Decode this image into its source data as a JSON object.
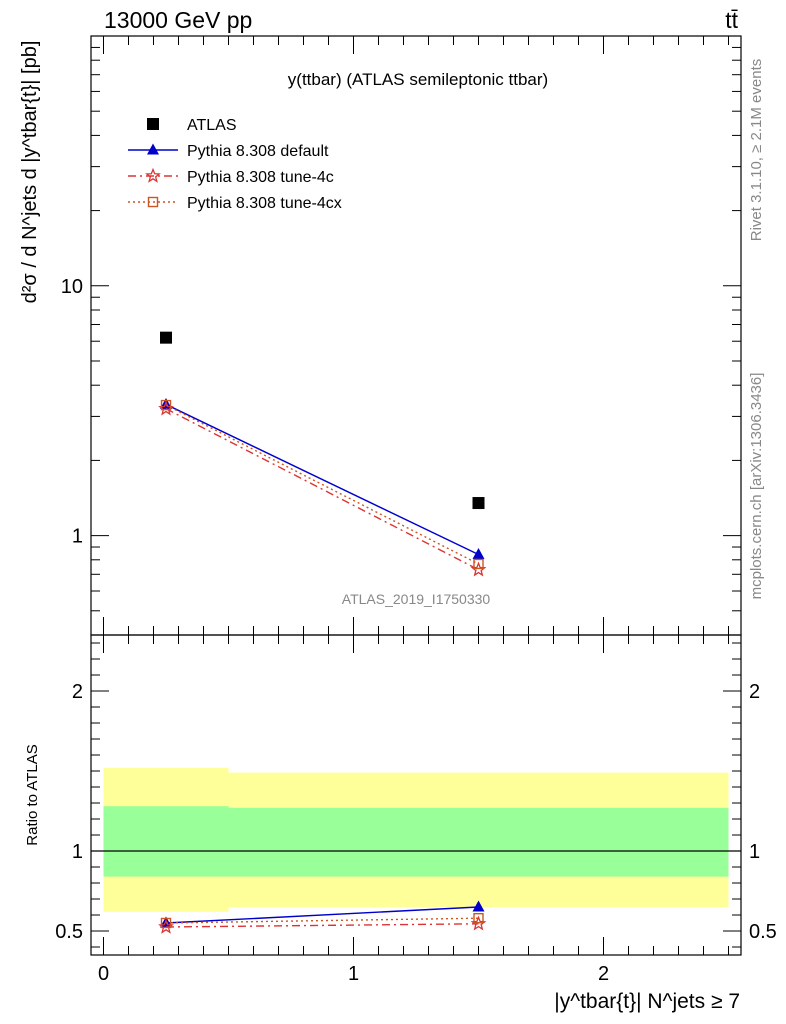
{
  "header": {
    "energy_label": "13000 GeV pp",
    "process_label": "tt̄"
  },
  "side_labels": {
    "rivet": "Rivet 3.1.10, ≥ 2.1M events",
    "mcplots": "mcplots.cern.ch [arXiv:1306.3436]"
  },
  "chart_data": [
    {
      "type": "line",
      "title": "y(ttbar) (ATLAS semileptonic ttbar)",
      "watermark": "ATLAS_2019_I1750330",
      "ylabel": "d²σ / d N^jets d |y^tbar{t}| [pb]",
      "yscale": "log",
      "ylim": [
        0.4,
        100
      ],
      "yticks": [
        {
          "value": 1,
          "label": "1"
        },
        {
          "value": 10,
          "label": "10"
        }
      ],
      "xlim": [
        -0.05,
        2.55
      ],
      "x": [
        0.25,
        1.5
      ],
      "legend_position": "top-left",
      "series": [
        {
          "name": "ATLAS",
          "color": "#000000",
          "marker": "square",
          "line": "none",
          "values": [
            6.2,
            1.35
          ]
        },
        {
          "name": "Pythia 8.308 default",
          "color": "#0000cc",
          "marker": "triangle",
          "line": "solid",
          "values": [
            3.35,
            0.84
          ]
        },
        {
          "name": "Pythia 8.308 tune-4c",
          "color": "#dd3333",
          "marker": "star",
          "line": "dashdot",
          "values": [
            3.22,
            0.73
          ]
        },
        {
          "name": "Pythia 8.308 tune-4cx",
          "color": "#cc5522",
          "marker": "open-square",
          "line": "dotted",
          "values": [
            3.33,
            0.77
          ]
        }
      ]
    },
    {
      "type": "line",
      "ylabel": "Ratio to ATLAS",
      "xlabel": "|y^tbar{t}| N^jets ≥ 7",
      "ylim": [
        0.35,
        2.35
      ],
      "yticks": [
        {
          "value": 0.5,
          "label": "0.5"
        },
        {
          "value": 1,
          "label": "1"
        },
        {
          "value": 2,
          "label": "2"
        }
      ],
      "xlim": [
        -0.05,
        2.55
      ],
      "xticks": [
        {
          "value": 0,
          "label": "0"
        },
        {
          "value": 1,
          "label": "1"
        },
        {
          "value": 2,
          "label": "2"
        }
      ],
      "bands": [
        {
          "x": [
            0,
            0.5
          ],
          "yellow": [
            0.62,
            1.52
          ],
          "green": [
            0.84,
            1.28
          ]
        },
        {
          "x": [
            0.5,
            2.5
          ],
          "yellow": [
            0.65,
            1.49
          ],
          "green": [
            0.84,
            1.27
          ]
        }
      ],
      "x": [
        0.25,
        1.5
      ],
      "series": [
        {
          "name": "Pythia 8.308 default",
          "color": "#0000cc",
          "marker": "triangle",
          "line": "solid",
          "values": [
            0.55,
            0.65
          ]
        },
        {
          "name": "Pythia 8.308 tune-4c",
          "color": "#dd3333",
          "marker": "star",
          "line": "dashdot",
          "values": [
            0.525,
            0.545
          ]
        },
        {
          "name": "Pythia 8.308 tune-4cx",
          "color": "#cc5522",
          "marker": "open-square",
          "line": "dotted",
          "values": [
            0.55,
            0.58
          ]
        }
      ]
    }
  ]
}
